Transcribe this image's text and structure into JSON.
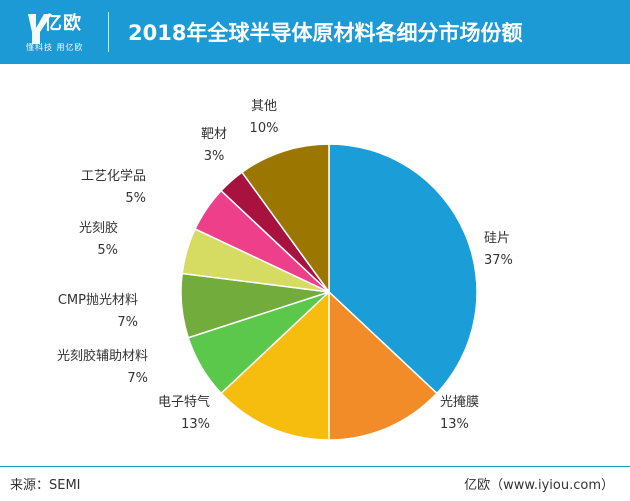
{
  "header": {
    "logo_text": "亿欧",
    "logo_sub": "懂科技 用亿欧",
    "title": "2018年全球半导体原材料各细分市场份额"
  },
  "chart_data": {
    "type": "pie",
    "title": "2018年全球半导体原材料各细分市场份额",
    "slices": [
      {
        "label": "硅片",
        "value": 37,
        "pct_label": "37%",
        "color": "#1b9dd8"
      },
      {
        "label": "光掩膜",
        "value": 13,
        "pct_label": "13%",
        "color": "#f28c28"
      },
      {
        "label": "电子特气",
        "value": 13,
        "pct_label": "13%",
        "color": "#f7bd0e"
      },
      {
        "label": "光刻胶辅助材料",
        "value": 7,
        "pct_label": "7%",
        "color": "#5cc84b"
      },
      {
        "label": "CMP抛光材料",
        "value": 7,
        "pct_label": "7%",
        "color": "#72ac3c"
      },
      {
        "label": "光刻胶",
        "value": 5,
        "pct_label": "5%",
        "color": "#d6dc62"
      },
      {
        "label": "工艺化学品",
        "value": 5,
        "pct_label": "5%",
        "color": "#ee3f8a"
      },
      {
        "label": "靶材",
        "value": 3,
        "pct_label": "3%",
        "color": "#a8123e"
      },
      {
        "label": "其他",
        "value": 10,
        "pct_label": "10%",
        "color": "#9b7702"
      }
    ]
  },
  "footer": {
    "source": "来源：SEMI",
    "brand": "亿欧（www.iyiou.com）"
  }
}
